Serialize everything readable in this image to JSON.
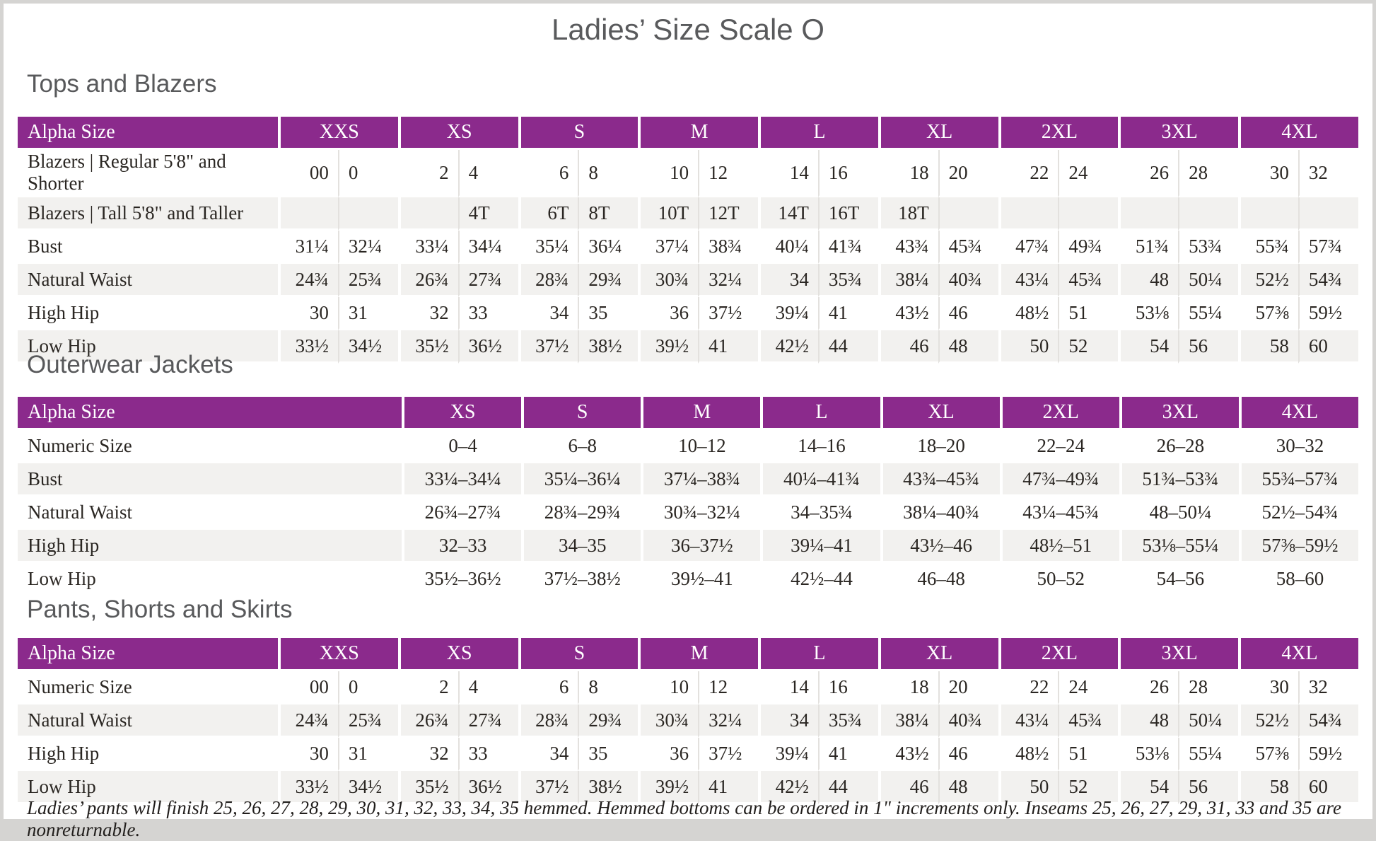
{
  "page": {
    "title": "Ladies’ Size Scale O",
    "footnote": "Ladies’ pants will finish 25, 26, 27, 28, 29, 30, 31, 32, 33, 34, 35 hemmed. Hemmed bottoms can be ordered in 1\" increments only. Inseams 25, 26, 27, 29, 31, 33 and 35 are nonreturnable."
  },
  "colors": {
    "header_purple": "#8b2a8c",
    "row_alt_gray": "#f2f1ef",
    "heading_gray": "#58595b",
    "page_frame_gray": "#d5d4d2"
  },
  "tables": [
    {
      "id": "tops-and-blazers",
      "heading": "Tops and Blazers",
      "layout": "split",
      "label_header": "Alpha Size",
      "columns": [
        "XXS",
        "XS",
        "S",
        "M",
        "L",
        "XL",
        "2XL",
        "3XL",
        "4XL"
      ],
      "rows": [
        {
          "label": "Blazers | Regular 5'8\" and Shorter",
          "values": [
            "00",
            "0",
            "2",
            "4",
            "6",
            "8",
            "10",
            "12",
            "14",
            "16",
            "18",
            "20",
            "22",
            "24",
            "26",
            "28",
            "30",
            "32"
          ]
        },
        {
          "label": "Blazers | Tall 5'8\" and Taller",
          "values": [
            "",
            "",
            "",
            "4T",
            "6T",
            "8T",
            "10T",
            "12T",
            "14T",
            "16T",
            "18T",
            "",
            "",
            "",
            "",
            "",
            "",
            ""
          ]
        },
        {
          "label": "Bust",
          "values": [
            "31¼",
            "32¼",
            "33¼",
            "34¼",
            "35¼",
            "36¼",
            "37¼",
            "38¾",
            "40¼",
            "41¾",
            "43¾",
            "45¾",
            "47¾",
            "49¾",
            "51¾",
            "53¾",
            "55¾",
            "57¾"
          ]
        },
        {
          "label": "Natural Waist",
          "values": [
            "24¾",
            "25¾",
            "26¾",
            "27¾",
            "28¾",
            "29¾",
            "30¾",
            "32¼",
            "34",
            "35¾",
            "38¼",
            "40¾",
            "43¼",
            "45¾",
            "48",
            "50¼",
            "52½",
            "54¾"
          ]
        },
        {
          "label": "High Hip",
          "values": [
            "30",
            "31",
            "32",
            "33",
            "34",
            "35",
            "36",
            "37½",
            "39¼",
            "41",
            "43½",
            "46",
            "48½",
            "51",
            "53⅛",
            "55¼",
            "57⅜",
            "59½"
          ]
        },
        {
          "label": "Low Hip",
          "values": [
            "33½",
            "34½",
            "35½",
            "36½",
            "37½",
            "38½",
            "39½",
            "41",
            "42½",
            "44",
            "46",
            "48",
            "50",
            "52",
            "54",
            "56",
            "58",
            "60"
          ]
        }
      ]
    },
    {
      "id": "outerwear-jackets",
      "heading": "Outerwear Jackets",
      "layout": "single",
      "label_header": "Alpha Size",
      "columns": [
        "XS",
        "S",
        "M",
        "L",
        "XL",
        "2XL",
        "3XL",
        "4XL"
      ],
      "rows": [
        {
          "label": "Numeric Size",
          "values": [
            "0–4",
            "6–8",
            "10–12",
            "14–16",
            "18–20",
            "22–24",
            "26–28",
            "30–32"
          ]
        },
        {
          "label": "Bust",
          "values": [
            "33¼–34¼",
            "35¼–36¼",
            "37¼–38¾",
            "40¼–41¾",
            "43¾–45¾",
            "47¾–49¾",
            "51¾–53¾",
            "55¾–57¾"
          ]
        },
        {
          "label": "Natural Waist",
          "values": [
            "26¾–27¾",
            "28¾–29¾",
            "30¾–32¼",
            "34–35¾",
            "38¼–40¾",
            "43¼–45¾",
            "48–50¼",
            "52½–54¾"
          ]
        },
        {
          "label": "High Hip",
          "values": [
            "32–33",
            "34–35",
            "36–37½",
            "39¼–41",
            "43½–46",
            "48½–51",
            "53⅛–55¼",
            "57⅜–59½"
          ]
        },
        {
          "label": "Low Hip",
          "values": [
            "35½–36½",
            "37½–38½",
            "39½–41",
            "42½–44",
            "46–48",
            "50–52",
            "54–56",
            "58–60"
          ]
        }
      ]
    },
    {
      "id": "pants-shorts-and-skirts",
      "heading": "Pants, Shorts and Skirts",
      "layout": "split",
      "label_header": "Alpha Size",
      "columns": [
        "XXS",
        "XS",
        "S",
        "M",
        "L",
        "XL",
        "2XL",
        "3XL",
        "4XL"
      ],
      "rows": [
        {
          "label": "Numeric Size",
          "values": [
            "00",
            "0",
            "2",
            "4",
            "6",
            "8",
            "10",
            "12",
            "14",
            "16",
            "18",
            "20",
            "22",
            "24",
            "26",
            "28",
            "30",
            "32"
          ]
        },
        {
          "label": "Natural Waist",
          "values": [
            "24¾",
            "25¾",
            "26¾",
            "27¾",
            "28¾",
            "29¾",
            "30¾",
            "32¼",
            "34",
            "35¾",
            "38¼",
            "40¾",
            "43¼",
            "45¾",
            "48",
            "50¼",
            "52½",
            "54¾"
          ]
        },
        {
          "label": "High Hip",
          "values": [
            "30",
            "31",
            "32",
            "33",
            "34",
            "35",
            "36",
            "37½",
            "39¼",
            "41",
            "43½",
            "46",
            "48½",
            "51",
            "53⅛",
            "55¼",
            "57⅜",
            "59½"
          ]
        },
        {
          "label": "Low Hip",
          "values": [
            "33½",
            "34½",
            "35½",
            "36½",
            "37½",
            "38½",
            "39½",
            "41",
            "42½",
            "44",
            "46",
            "48",
            "50",
            "52",
            "54",
            "56",
            "58",
            "60"
          ]
        }
      ]
    }
  ]
}
